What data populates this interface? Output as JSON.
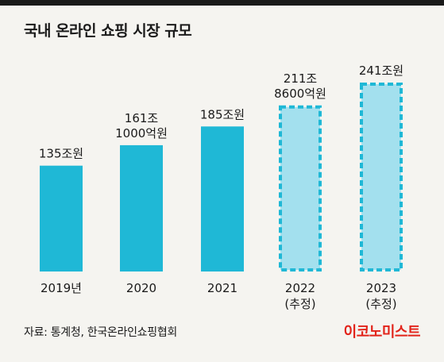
{
  "title": "국내 온라인 쇼핑 시장 규모",
  "source": "자료: 통계청, 한국온라인쇼핑협회",
  "brand": "이코노미스트",
  "colors": {
    "actual": "#1fb8d6",
    "estimate_fill": "#a3e0ee",
    "estimate_border": "#1fb8d6",
    "accent": "#e2231a"
  },
  "chart_data": {
    "type": "bar",
    "title": "국내 온라인 쇼핑 시장 규모",
    "unit": "조원",
    "categories": [
      "2019년",
      "2020",
      "2021",
      "2022",
      "2023"
    ],
    "category_notes": [
      "",
      "",
      "",
      "(추정)",
      "(추정)"
    ],
    "values": [
      135,
      161.1,
      185,
      211.86,
      241
    ],
    "value_labels": [
      [
        "135조원"
      ],
      [
        "161조",
        "1000억원"
      ],
      [
        "185조원"
      ],
      [
        "211조",
        "8600억원"
      ],
      [
        "241조원"
      ]
    ],
    "estimated": [
      false,
      false,
      false,
      true,
      true
    ],
    "ylim": [
      0,
      241
    ]
  }
}
